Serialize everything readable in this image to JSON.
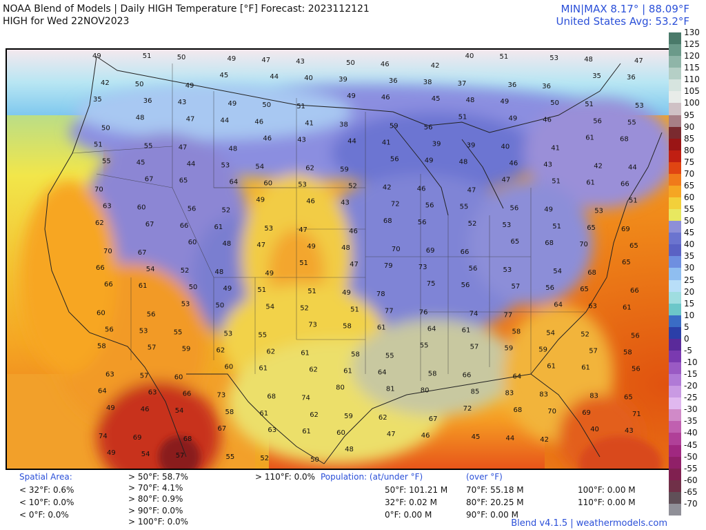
{
  "header": {
    "title_line1": "NOAA Blend of Models | Daily HIGH Temperature [°F] Forecast: 2023112121",
    "title_line2": "HIGH for Wed 22NOV2023",
    "minmax": "MIN|MAX 8.17°  |  88.09°F",
    "us_avg": "United States Avg: 53.2°F"
  },
  "map": {
    "labels": [
      {
        "v": "49"
      },
      {
        "v": "51"
      },
      {
        "v": "50"
      },
      {
        "v": "49"
      },
      {
        "v": "47"
      },
      {
        "v": "43"
      },
      {
        "v": "50"
      },
      {
        "v": "46"
      },
      {
        "v": "42"
      },
      {
        "v": "40"
      },
      {
        "v": "51"
      },
      {
        "v": "53"
      },
      {
        "v": "48"
      },
      {
        "v": "47"
      },
      {
        "v": "42"
      },
      {
        "v": "50"
      },
      {
        "v": "49"
      },
      {
        "v": "45"
      },
      {
        "v": "44"
      },
      {
        "v": "40"
      },
      {
        "v": "39"
      },
      {
        "v": "36"
      },
      {
        "v": "38"
      },
      {
        "v": "37"
      },
      {
        "v": "36"
      },
      {
        "v": "36"
      },
      {
        "v": "35"
      },
      {
        "v": "36"
      },
      {
        "v": "35"
      },
      {
        "v": "36"
      },
      {
        "v": "43"
      },
      {
        "v": "49"
      },
      {
        "v": "50"
      },
      {
        "v": "51"
      },
      {
        "v": "49"
      },
      {
        "v": "46"
      },
      {
        "v": "45"
      },
      {
        "v": "48"
      },
      {
        "v": "49"
      },
      {
        "v": "50"
      },
      {
        "v": "51"
      },
      {
        "v": "53"
      },
      {
        "v": "50"
      },
      {
        "v": "48"
      },
      {
        "v": "47"
      },
      {
        "v": "44"
      },
      {
        "v": "46"
      },
      {
        "v": "41"
      },
      {
        "v": "38"
      },
      {
        "v": "59"
      },
      {
        "v": "56"
      },
      {
        "v": "51"
      },
      {
        "v": "49"
      },
      {
        "v": "46"
      },
      {
        "v": "56"
      },
      {
        "v": "55"
      },
      {
        "v": "51"
      },
      {
        "v": "55"
      },
      {
        "v": "47"
      },
      {
        "v": "48"
      },
      {
        "v": "46"
      },
      {
        "v": "43"
      },
      {
        "v": "44"
      },
      {
        "v": "41"
      },
      {
        "v": "39"
      },
      {
        "v": "39"
      },
      {
        "v": "40"
      },
      {
        "v": "41"
      },
      {
        "v": "61"
      },
      {
        "v": "68"
      },
      {
        "v": "55"
      },
      {
        "v": "45"
      },
      {
        "v": "44"
      },
      {
        "v": "53"
      },
      {
        "v": "54"
      },
      {
        "v": "62"
      },
      {
        "v": "59"
      },
      {
        "v": "56"
      },
      {
        "v": "49"
      },
      {
        "v": "48"
      },
      {
        "v": "46"
      },
      {
        "v": "43"
      },
      {
        "v": "42"
      },
      {
        "v": "44"
      },
      {
        "v": "70"
      },
      {
        "v": "67"
      },
      {
        "v": "65"
      },
      {
        "v": "64"
      },
      {
        "v": "60"
      },
      {
        "v": "53"
      },
      {
        "v": "52"
      },
      {
        "v": "42"
      },
      {
        "v": "46"
      },
      {
        "v": "47"
      },
      {
        "v": "47"
      },
      {
        "v": "51"
      },
      {
        "v": "61"
      },
      {
        "v": "66"
      },
      {
        "v": "63"
      },
      {
        "v": "60"
      },
      {
        "v": "56"
      },
      {
        "v": "52"
      },
      {
        "v": "49"
      },
      {
        "v": "46"
      },
      {
        "v": "43"
      },
      {
        "v": "72"
      },
      {
        "v": "56"
      },
      {
        "v": "55"
      },
      {
        "v": "56"
      },
      {
        "v": "49"
      },
      {
        "v": "53"
      },
      {
        "v": "51"
      },
      {
        "v": "62"
      },
      {
        "v": "67"
      },
      {
        "v": "66"
      },
      {
        "v": "61"
      },
      {
        "v": "53"
      },
      {
        "v": "47"
      },
      {
        "v": "46"
      },
      {
        "v": "68"
      },
      {
        "v": "56"
      },
      {
        "v": "52"
      },
      {
        "v": "53"
      },
      {
        "v": "51"
      },
      {
        "v": "65"
      },
      {
        "v": "69"
      },
      {
        "v": "70"
      },
      {
        "v": "67"
      },
      {
        "v": "60"
      },
      {
        "v": "48"
      },
      {
        "v": "47"
      },
      {
        "v": "49"
      },
      {
        "v": "48"
      },
      {
        "v": "70"
      },
      {
        "v": "69"
      },
      {
        "v": "66"
      },
      {
        "v": "65"
      },
      {
        "v": "68"
      },
      {
        "v": "70"
      },
      {
        "v": "65"
      },
      {
        "v": "66"
      },
      {
        "v": "54"
      },
      {
        "v": "52"
      },
      {
        "v": "48"
      },
      {
        "v": "49"
      },
      {
        "v": "51"
      },
      {
        "v": "47"
      },
      {
        "v": "79"
      },
      {
        "v": "73"
      },
      {
        "v": "56"
      },
      {
        "v": "53"
      },
      {
        "v": "54"
      },
      {
        "v": "68"
      },
      {
        "v": "65"
      },
      {
        "v": "66"
      },
      {
        "v": "61"
      },
      {
        "v": "50"
      },
      {
        "v": "49"
      },
      {
        "v": "51"
      },
      {
        "v": "51"
      },
      {
        "v": "49"
      },
      {
        "v": "78"
      },
      {
        "v": "75"
      },
      {
        "v": "56"
      },
      {
        "v": "57"
      },
      {
        "v": "56"
      },
      {
        "v": "65"
      },
      {
        "v": "66"
      },
      {
        "v": "60"
      },
      {
        "v": "56"
      },
      {
        "v": "53"
      },
      {
        "v": "50"
      },
      {
        "v": "54"
      },
      {
        "v": "52"
      },
      {
        "v": "51"
      },
      {
        "v": "77"
      },
      {
        "v": "76"
      },
      {
        "v": "74"
      },
      {
        "v": "77"
      },
      {
        "v": "64"
      },
      {
        "v": "63"
      },
      {
        "v": "61"
      },
      {
        "v": "56"
      },
      {
        "v": "53"
      },
      {
        "v": "55"
      },
      {
        "v": "53"
      },
      {
        "v": "55"
      },
      {
        "v": "73"
      },
      {
        "v": "58"
      },
      {
        "v": "61"
      },
      {
        "v": "64"
      },
      {
        "v": "61"
      },
      {
        "v": "58"
      },
      {
        "v": "54"
      },
      {
        "v": "52"
      },
      {
        "v": "56"
      },
      {
        "v": "58"
      },
      {
        "v": "57"
      },
      {
        "v": "59"
      },
      {
        "v": "62"
      },
      {
        "v": "62"
      },
      {
        "v": "61"
      },
      {
        "v": "58"
      },
      {
        "v": "55"
      },
      {
        "v": "55"
      },
      {
        "v": "57"
      },
      {
        "v": "59"
      },
      {
        "v": "59"
      },
      {
        "v": "57"
      },
      {
        "v": "58"
      },
      {
        "v": "63"
      },
      {
        "v": "57"
      },
      {
        "v": "60"
      },
      {
        "v": "60"
      },
      {
        "v": "61"
      },
      {
        "v": "62"
      },
      {
        "v": "61"
      },
      {
        "v": "64"
      },
      {
        "v": "58"
      },
      {
        "v": "66"
      },
      {
        "v": "64"
      },
      {
        "v": "61"
      },
      {
        "v": "61"
      },
      {
        "v": "56"
      },
      {
        "v": "64"
      },
      {
        "v": "63"
      },
      {
        "v": "66"
      },
      {
        "v": "73"
      },
      {
        "v": "68"
      },
      {
        "v": "74"
      },
      {
        "v": "80"
      },
      {
        "v": "81"
      },
      {
        "v": "80"
      },
      {
        "v": "85"
      },
      {
        "v": "83"
      },
      {
        "v": "83"
      },
      {
        "v": "83"
      },
      {
        "v": "65"
      },
      {
        "v": "49"
      },
      {
        "v": "46"
      },
      {
        "v": "54"
      },
      {
        "v": "58"
      },
      {
        "v": "61"
      },
      {
        "v": "62"
      },
      {
        "v": "59"
      },
      {
        "v": "62"
      },
      {
        "v": "67"
      },
      {
        "v": "72"
      },
      {
        "v": "68"
      },
      {
        "v": "70"
      },
      {
        "v": "69"
      },
      {
        "v": "71"
      },
      {
        "v": "74"
      },
      {
        "v": "69"
      },
      {
        "v": "68"
      },
      {
        "v": "67"
      },
      {
        "v": "63"
      },
      {
        "v": "61"
      },
      {
        "v": "60"
      },
      {
        "v": "47"
      },
      {
        "v": "46"
      },
      {
        "v": "45"
      },
      {
        "v": "44"
      },
      {
        "v": "42"
      },
      {
        "v": "40"
      },
      {
        "v": "43"
      },
      {
        "v": "49"
      },
      {
        "v": "54"
      },
      {
        "v": "57"
      },
      {
        "v": "55"
      },
      {
        "v": "52"
      },
      {
        "v": "50"
      },
      {
        "v": "48"
      }
    ]
  },
  "colorbar": {
    "ticks": [
      "130",
      "125",
      "120",
      "115",
      "110",
      "105",
      "100",
      "95",
      "90",
      "85",
      "80",
      "75",
      "70",
      "65",
      "60",
      "55",
      "50",
      "45",
      "40",
      "35",
      "30",
      "25",
      "20",
      "15",
      "10",
      "5",
      "0",
      "-5",
      "-10",
      "-15",
      "-20",
      "-25",
      "-30",
      "-35",
      "-40",
      "-45",
      "-50",
      "-55",
      "-60",
      "-65",
      "-70"
    ],
    "colors": [
      "#4a7a6a",
      "#6b9a8a",
      "#8fb5a8",
      "#b5cfc6",
      "#d6e4df",
      "#e8ece9",
      "#cfc1c5",
      "#a77f86",
      "#7a2a2f",
      "#9a1515",
      "#c01f12",
      "#e04512",
      "#f07a1a",
      "#f5a623",
      "#f2d03a",
      "#e8e860",
      "#8d8fd8",
      "#6b74cf",
      "#5a62c4",
      "#6e8fe0",
      "#8fbef0",
      "#b8def8",
      "#9fdde0",
      "#6cc7c9",
      "#3a6cc5",
      "#2b3fa8",
      "#5a2a9a",
      "#7a3ab0",
      "#9a5ac4",
      "#b07ad6",
      "#c99ae3",
      "#e0b8ef",
      "#d08ac8",
      "#c060b0",
      "#b04098",
      "#a02880",
      "#902068",
      "#802050",
      "#703048",
      "#605058",
      "#909098"
    ]
  },
  "stats": {
    "spatial_area_label": "Spatial Area:",
    "lt32": "< 32°F: 0.6%",
    "lt10": "< 10°F: 0.0%",
    "lt0": "< 0°F: 0.0%",
    "gt50": "> 50°F: 58.7%",
    "gt70": "> 70°F: 4.1%",
    "gt80": "> 80°F: 0.9%",
    "gt90": "> 90°F: 0.0%",
    "gt100": "> 100°F: 0.0%",
    "gt110": "> 110°F: 0.0%",
    "population_label": "Population: (at/under °F)",
    "over_label": "(over °F)",
    "p50": "50°F: 101.21 M",
    "p32": "32°F: 0.02 M",
    "p0": "0°F: 0.00 M",
    "p70": "70°F: 55.18 M",
    "p80": "80°F: 20.25 M",
    "p90": "90°F: 0.00 M",
    "p100": "100°F: 0.00 M",
    "p110": "110°F: 0.00 M"
  },
  "footer": "Blend v4.1.5 | weathermodels.com"
}
